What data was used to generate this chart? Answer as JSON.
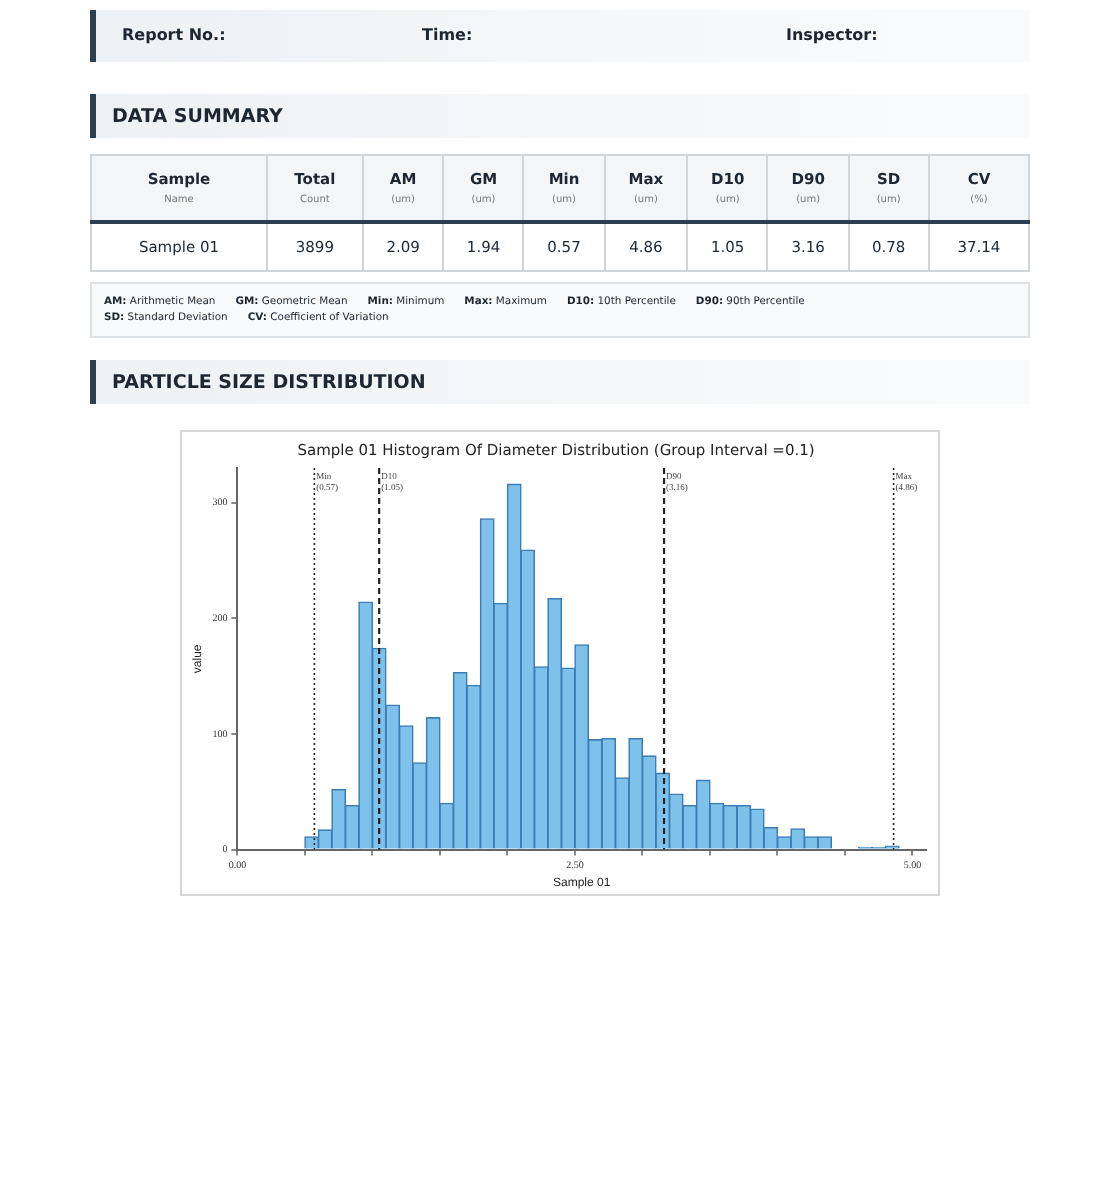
{
  "chart_data": [
    {
      "type": "other",
      "title": "DATA SUMMARY",
      "annotations": [
        "Report No.:",
        "Time:",
        "Inspector:",
        "Sample",
        "Name",
        "Total",
        "Count",
        "AM",
        "(um)",
        "GM",
        "(um)",
        "Min",
        "(um)",
        "Max",
        "(um)",
        "D10",
        "(um)",
        "D90",
        "(um)",
        "SD",
        "(um)",
        "CV",
        "(%)",
        "Sample 01",
        "3899",
        "2.09",
        "1.94",
        "0.57",
        "4.86",
        "1.05",
        "3.16",
        "0.78",
        "37.14",
        "AM: Arithmetic Mean",
        "GM: Geometric Mean",
        "Min: Minimum",
        "Max: Maximum",
        "D10: 10th Percentile",
        "D90: 90th Percentile",
        "SD: Standard Deviation",
        "CV: Coefficient of Variation",
        "PARTICLE SIZE DISTRIBUTION"
      ]
    },
    {
      "type": "histogram",
      "title": "Sample 01 Histogram Of Diameter Distribution (Group Interval =0.1)",
      "xlabel": "Sample 01",
      "ylabel": "value",
      "color": "#7ec1ea",
      "bins": [
        0,
        0.1,
        0.2,
        0.3,
        0.4,
        0.5,
        0.6,
        0.7,
        0.8,
        0.9,
        1.0,
        1.1,
        1.2,
        1.3,
        1.4,
        1.5,
        1.6,
        1.7,
        1.8,
        1.9,
        2.0,
        2.1,
        2.2,
        2.3,
        2.4,
        2.5,
        2.6,
        2.7,
        2.8,
        2.9,
        3.0,
        3.1,
        3.2,
        3.3,
        3.4,
        3.5,
        3.6,
        3.7,
        3.8,
        3.9,
        4.0,
        4.1,
        4.2,
        4.3,
        4.4,
        4.5,
        4.6,
        4.7,
        4.8,
        4.9,
        5.0
      ],
      "values": [
        0,
        0,
        0,
        0,
        0,
        11,
        17,
        52,
        38,
        214,
        174,
        125,
        107,
        75,
        114,
        40,
        153,
        142,
        286,
        213,
        316,
        259,
        158,
        217,
        157,
        177,
        95,
        96,
        62,
        96,
        81,
        66,
        48,
        38,
        60,
        40,
        38,
        38,
        35,
        19,
        11,
        18,
        11,
        11,
        0,
        0,
        2,
        2,
        3,
        0
      ],
      "xlim": [
        0,
        5.1
      ],
      "ylim": [
        0,
        330
      ],
      "xticks": [
        {
          "value": 0,
          "label": "0.00"
        },
        {
          "value": 0.5,
          "label": null
        },
        {
          "value": 1,
          "label": null
        },
        {
          "value": 1.5,
          "label": null
        },
        {
          "value": 2,
          "label": null
        },
        {
          "value": 2.5,
          "label": "2.50"
        },
        {
          "value": 3,
          "label": null
        },
        {
          "value": 3.5,
          "label": null
        },
        {
          "value": 4,
          "label": null
        },
        {
          "value": 4.5,
          "label": null
        },
        {
          "value": 5,
          "label": "5.00"
        }
      ],
      "yticks": [
        0,
        100,
        200,
        300
      ],
      "ref_lines": [
        {
          "axis": "x",
          "value": 0.57,
          "label": "Min\n(0.57)",
          "line_style": "dotted"
        },
        {
          "axis": "x",
          "value": 1.05,
          "label": "D10\n(1.05)",
          "line_style": "dashed"
        },
        {
          "axis": "x",
          "value": 3.16,
          "label": "D90\n(3.16)",
          "line_style": "dashed"
        },
        {
          "axis": "x",
          "value": 4.86,
          "label": "Max\n(4.86)",
          "line_style": "dotted"
        }
      ],
      "grid": false,
      "legend": false
    }
  ]
}
